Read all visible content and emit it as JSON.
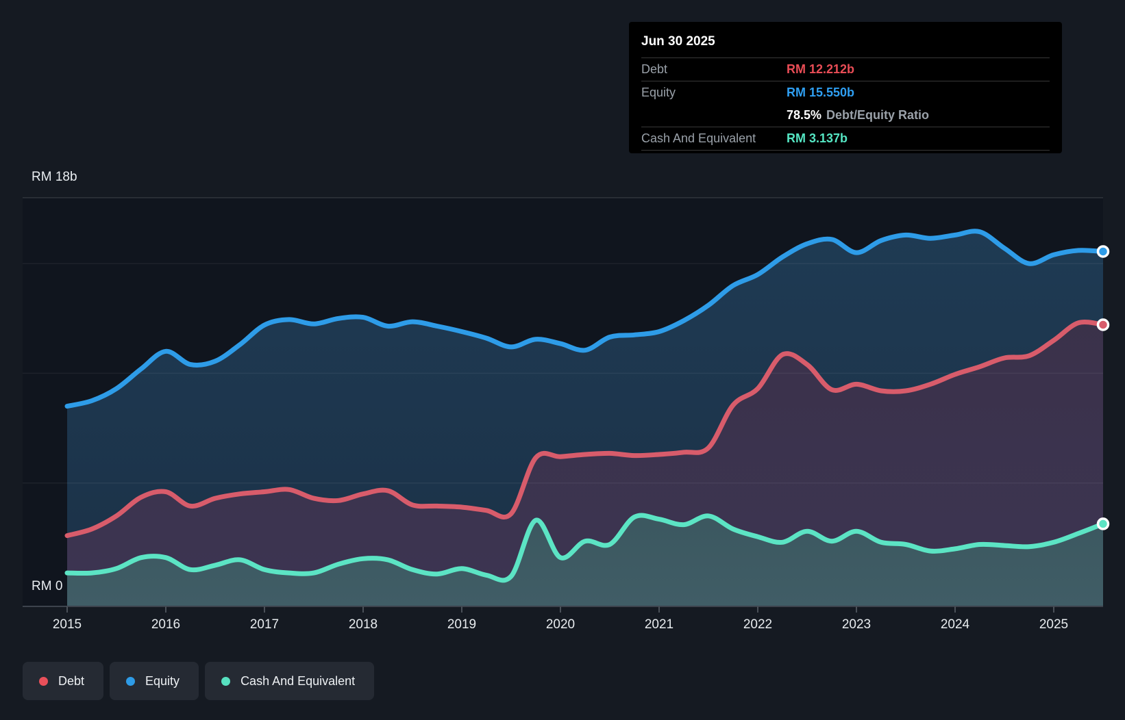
{
  "tooltip": {
    "date": "Jun 30 2025",
    "debt": {
      "label": "Debt",
      "value": "RM 12.212b",
      "color": "#e94d56"
    },
    "equity": {
      "label": "Equity",
      "value": "RM 15.550b",
      "color": "#2f9ff2"
    },
    "ratio": {
      "value": "78.5%",
      "label": "Debt/Equity Ratio"
    },
    "cash": {
      "label": "Cash And Equivalent",
      "value": "RM 3.137b",
      "color": "#55e6c3"
    }
  },
  "legend": {
    "items": [
      {
        "label": "Debt",
        "color": "#e9505a"
      },
      {
        "label": "Equity",
        "color": "#2e9be6"
      },
      {
        "label": "Cash And Equivalent",
        "color": "#57e0c0"
      }
    ]
  },
  "chart_data": {
    "type": "area",
    "currency_prefix": "RM",
    "x_ticks": [
      "2015",
      "2016",
      "2017",
      "2018",
      "2019",
      "2020",
      "2021",
      "2022",
      "2023",
      "2024",
      "2025"
    ],
    "y_axis": {
      "top_label": "RM 18b",
      "zero_label": "RM 0",
      "max": 18,
      "min": 0,
      "gridline_values": [
        18,
        15,
        10,
        5
      ]
    },
    "xlim": [
      2015,
      2025.5
    ],
    "ylim": [
      0,
      18
    ],
    "x": [
      2015.0,
      2015.25,
      2015.5,
      2015.75,
      2016.0,
      2016.25,
      2016.5,
      2016.75,
      2017.0,
      2017.25,
      2017.5,
      2017.75,
      2018.0,
      2018.25,
      2018.5,
      2018.75,
      2019.0,
      2019.25,
      2019.5,
      2019.75,
      2020.0,
      2020.25,
      2020.5,
      2020.75,
      2021.0,
      2021.25,
      2021.5,
      2021.75,
      2022.0,
      2022.25,
      2022.5,
      2022.75,
      2023.0,
      2023.25,
      2023.5,
      2023.75,
      2024.0,
      2024.25,
      2024.5,
      2024.75,
      2025.0,
      2025.25,
      2025.5
    ],
    "series": [
      {
        "name": "Equity",
        "unit": "RM billions",
        "line_color": "#2e9ce8",
        "fill_top": "#1f3b54",
        "fill_bottom": "#1b3147",
        "end_value_label": "RM 15.550b",
        "values": [
          8.5,
          8.75,
          9.3,
          10.2,
          11.0,
          10.4,
          10.55,
          11.3,
          12.2,
          12.45,
          12.25,
          12.5,
          12.55,
          12.15,
          12.35,
          12.15,
          11.9,
          11.6,
          11.2,
          11.55,
          11.35,
          11.05,
          11.65,
          11.75,
          11.9,
          12.4,
          13.1,
          14.0,
          14.5,
          15.3,
          15.9,
          16.1,
          15.5,
          16.05,
          16.3,
          16.15,
          16.3,
          16.45,
          15.7,
          15.0,
          15.4,
          15.6,
          15.55
        ]
      },
      {
        "name": "Debt",
        "unit": "RM billions",
        "line_color": "#d85c6b",
        "fill_top": "#3a3047",
        "fill_bottom": "#3c3552",
        "end_value_label": "RM 12.212b",
        "values": [
          2.6,
          2.9,
          3.5,
          4.35,
          4.6,
          3.95,
          4.3,
          4.5,
          4.6,
          4.7,
          4.3,
          4.2,
          4.5,
          4.65,
          4.0,
          3.95,
          3.9,
          3.75,
          3.6,
          6.15,
          6.2,
          6.3,
          6.35,
          6.25,
          6.3,
          6.4,
          6.6,
          8.55,
          9.3,
          10.85,
          10.4,
          9.25,
          9.5,
          9.2,
          9.2,
          9.5,
          9.95,
          10.3,
          10.7,
          10.8,
          11.5,
          12.3,
          12.212
        ]
      },
      {
        "name": "Cash And Equivalent",
        "unit": "RM billions",
        "line_color": "#5ce4c4",
        "fill_top": "#2c454a",
        "fill_bottom": "#405d66",
        "end_value_label": "RM 3.137b",
        "values": [
          0.9,
          0.9,
          1.1,
          1.6,
          1.6,
          1.05,
          1.25,
          1.5,
          1.05,
          0.9,
          0.9,
          1.3,
          1.55,
          1.5,
          1.05,
          0.85,
          1.1,
          0.8,
          0.75,
          3.3,
          1.6,
          2.35,
          2.2,
          3.45,
          3.35,
          3.1,
          3.5,
          2.9,
          2.55,
          2.3,
          2.8,
          2.35,
          2.8,
          2.3,
          2.2,
          1.9,
          2.0,
          2.2,
          2.15,
          2.1,
          2.3,
          2.7,
          3.137
        ]
      }
    ],
    "legend_position": "bottom-left",
    "grid": "horizontal"
  }
}
